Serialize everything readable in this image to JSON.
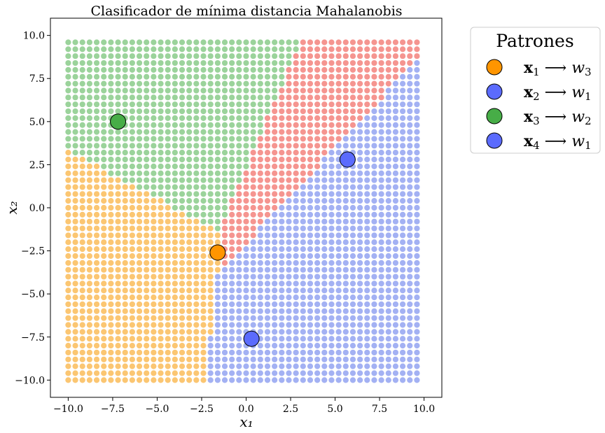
{
  "chart_data": {
    "type": "scatter",
    "title": "Clasificador de mínima distancia Mahalanobis",
    "xlabel": "x₁",
    "ylabel": "x₂",
    "xlim": [
      -11,
      11
    ],
    "ylim": [
      -11,
      11
    ],
    "xticks": [
      -10.0,
      -7.5,
      -5.0,
      -2.5,
      0.0,
      2.5,
      5.0,
      7.5,
      10.0
    ],
    "yticks": [
      -10.0,
      -7.5,
      -5.0,
      -2.5,
      0.0,
      2.5,
      5.0,
      7.5,
      10.0
    ],
    "xtick_labels": [
      "−10.0",
      "−7.5",
      "−5.0",
      "−2.5",
      "0.0",
      "2.5",
      "5.0",
      "7.5",
      "10.0"
    ],
    "ytick_labels": [
      "−10.0",
      "−7.5",
      "−5.0",
      "−2.5",
      "0.0",
      "2.5",
      "5.0",
      "7.5",
      "10.0"
    ],
    "grid": false,
    "grid_points": {
      "x_range": [
        -10,
        9.8
      ],
      "y_range": [
        -10,
        9.8
      ],
      "step": 0.4
    },
    "region_colors": {
      "w1": "#a3b1f3",
      "w2": "#9bd39b",
      "w3": "#fbc672",
      "red": "#f59590"
    },
    "patterns": [
      {
        "name": "x₁",
        "class": "w₃",
        "x": -1.6,
        "y": -2.6,
        "color": "#ff9500"
      },
      {
        "name": "x₂",
        "class": "w₁",
        "x": 0.3,
        "y": -7.6,
        "color": "#5b6bfd"
      },
      {
        "name": "x₃",
        "class": "w₂",
        "x": -7.2,
        "y": 5.0,
        "color": "#47ad47"
      },
      {
        "name": "x₄",
        "class": "w₁",
        "x": 5.7,
        "y": 2.8,
        "color": "#5b6bfd"
      }
    ],
    "legend": {
      "title": "Patrones",
      "placement": "outside-right",
      "entries": [
        {
          "label_bold": "x",
          "label_sub": "1",
          "arrow": "⟶",
          "target": "w",
          "target_sub": "3",
          "color": "#ff9500"
        },
        {
          "label_bold": "x",
          "label_sub": "2",
          "arrow": "⟶",
          "target": "w",
          "target_sub": "1",
          "color": "#5b6bfd"
        },
        {
          "label_bold": "x",
          "label_sub": "3",
          "arrow": "⟶",
          "target": "w",
          "target_sub": "2",
          "color": "#47ad47"
        },
        {
          "label_bold": "x",
          "label_sub": "4",
          "arrow": "⟶",
          "target": "w",
          "target_sub": "1",
          "color": "#5b6bfd"
        }
      ]
    }
  }
}
